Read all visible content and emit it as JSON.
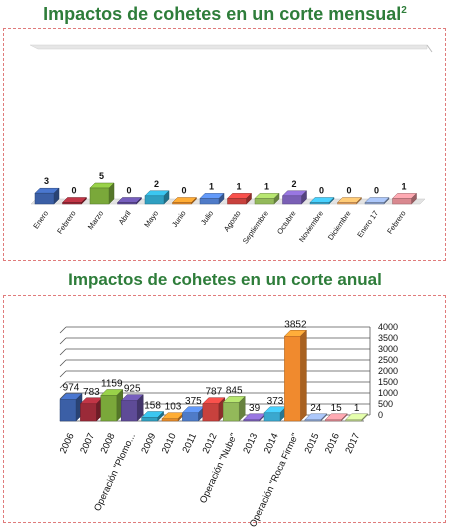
{
  "chart_data": [
    {
      "type": "bar",
      "title": "Impactos de cohetes en un corte mensual",
      "title_superscript": "2",
      "categories": [
        "Enero",
        "Febrero",
        "Marzo",
        "Abril",
        "Mayo",
        "Junio",
        "Julio",
        "Agosto",
        "Septiembre",
        "Octubre",
        "Noviembre",
        "Diciembre",
        "Enero 17",
        "Febrero"
      ],
      "values": [
        3,
        0,
        5,
        0,
        2,
        0,
        1,
        1,
        1,
        2,
        0,
        0,
        0,
        1
      ],
      "colors": [
        "#3b5fa6",
        "#9b2a38",
        "#7aa83a",
        "#5e4b97",
        "#2f9fc1",
        "#e58a2a",
        "#4f7bc8",
        "#c8413d",
        "#93b95a",
        "#7a5fb5",
        "#3aa8cf",
        "#e8a35f",
        "#8aa0c9",
        "#d9888f"
      ],
      "ylim": [
        0,
        5
      ],
      "grid": false
    },
    {
      "type": "bar",
      "title": "Impactos de cohetes en un corte anual",
      "categories": [
        "2006",
        "2007",
        "2008",
        "Operación \"Plomo...",
        "2009",
        "2010",
        "2011",
        "2012",
        "Operación \"Nube\"",
        "2013",
        "2014",
        "Operación \"Roca Firme\"",
        "2015",
        "2016",
        "2017"
      ],
      "values": [
        974,
        783,
        1159,
        925,
        158,
        103,
        375,
        787,
        845,
        39,
        373,
        3852,
        24,
        15,
        1
      ],
      "colors": [
        "#3b5fa6",
        "#9b2a38",
        "#7aa83a",
        "#5e4b97",
        "#2f9fc1",
        "#e58a2a",
        "#4f7bc8",
        "#c8413d",
        "#93b95a",
        "#7a5fb5",
        "#3aa8cf",
        "#f08a2e",
        "#8aa0c9",
        "#d9888f",
        "#b7cc8a"
      ],
      "yticks": [
        0,
        500,
        1000,
        1500,
        2000,
        2500,
        3000,
        3500,
        4000
      ],
      "ylim": [
        0,
        4000
      ],
      "grid": true,
      "yaxis_position": "right"
    }
  ]
}
